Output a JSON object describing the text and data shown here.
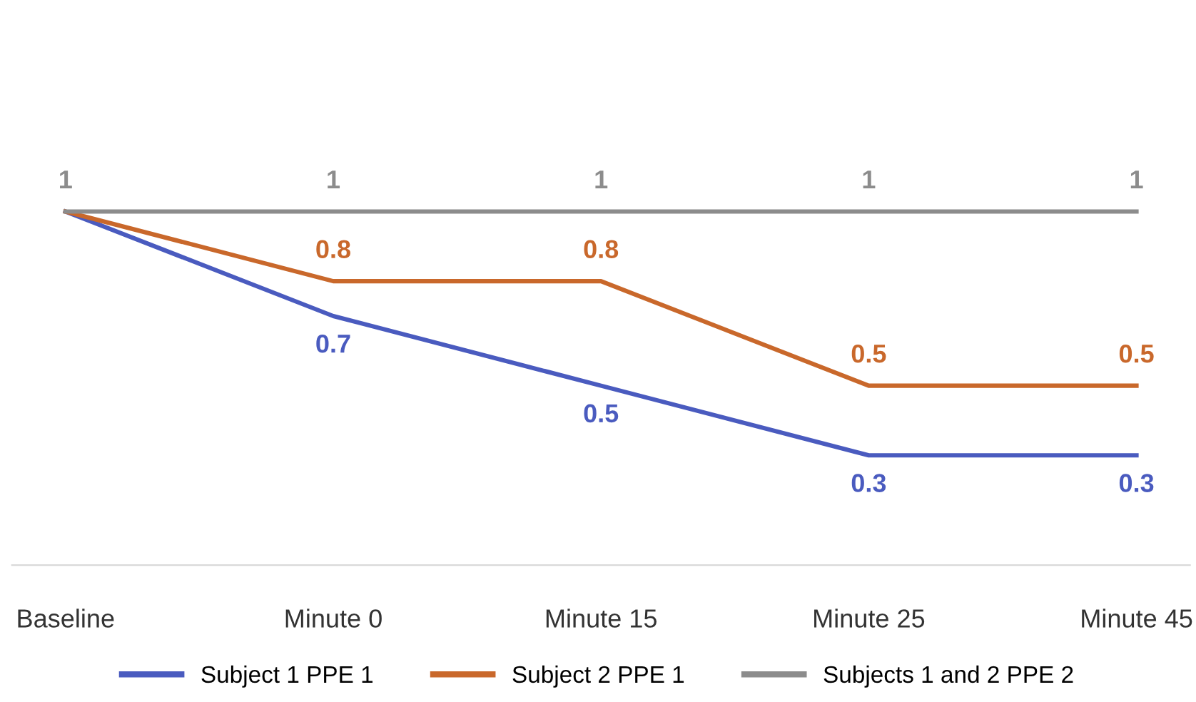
{
  "chart_data": {
    "type": "line",
    "categories": [
      "Baseline",
      "Minute 0",
      "Minute 15",
      "Minute 25",
      "Minute 45"
    ],
    "series": [
      {
        "name": "Subject 1 PPE 1",
        "color": "#4a5bbf",
        "values": [
          1,
          0.7,
          0.5,
          0.3,
          0.3
        ],
        "value_labels": [
          null,
          "0.7",
          "0.5",
          "0.3",
          "0.3"
        ]
      },
      {
        "name": "Subject 2 PPE 1",
        "color": "#c9682b",
        "values": [
          1,
          0.8,
          0.8,
          0.5,
          0.5
        ],
        "value_labels": [
          null,
          "0.8",
          "0.8",
          "0.5",
          "0.5"
        ]
      },
      {
        "name": "Subjects 1 and 2 PPE 2",
        "color": "#8c8c8c",
        "values": [
          1,
          1,
          1,
          1,
          1
        ],
        "value_labels": [
          "1",
          "1",
          "1",
          "1",
          "1"
        ]
      }
    ],
    "tick_labels": "x",
    "grid": false,
    "legend": "bottom",
    "line_style": "solid"
  }
}
